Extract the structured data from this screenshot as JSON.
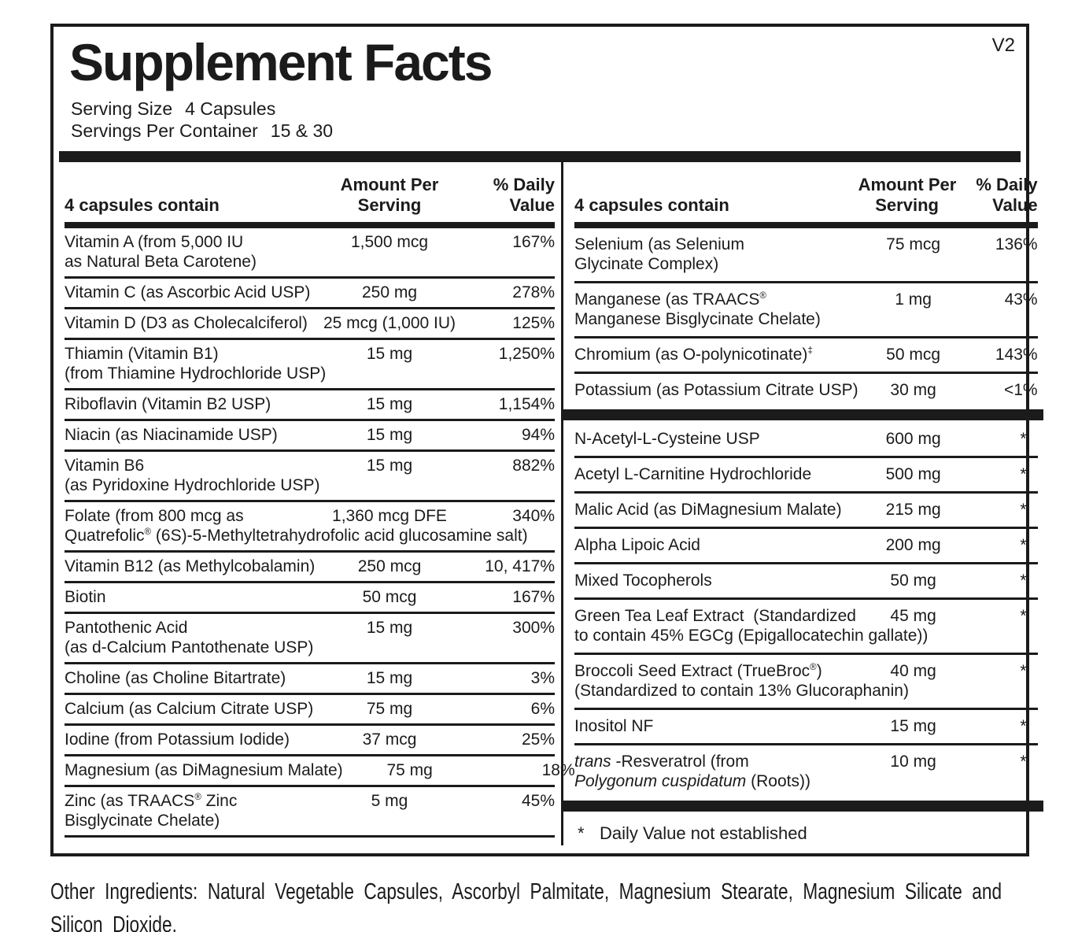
{
  "version_tag": "V2",
  "title": "Supplement Facts",
  "serving_size": {
    "label": "Serving Size",
    "value": "4 Capsules"
  },
  "servings_per_container": {
    "label": "Servings Per Container",
    "value": "15 & 30"
  },
  "columns": {
    "left": {
      "header": {
        "contain": "4 capsules contain",
        "amount": "Amount Per\nServing",
        "dv": "% Daily\nValue"
      },
      "rows": [
        {
          "name": "Vitamin A (from 5,000 IU",
          "name2": "as Natural Beta Carotene)",
          "amount": "1,500 mcg",
          "dv": "167%"
        },
        {
          "name": "Vitamin C (as Ascorbic Acid USP)",
          "amount": "250 mg",
          "dv": "278%"
        },
        {
          "name": "Vitamin D (D3 as Cholecalciferol)",
          "amount": "25 mcg (1,000 IU)",
          "dv": "125%"
        },
        {
          "name": "Thiamin (Vitamin B1)",
          "name2": "(from Thiamine Hydrochloride USP)",
          "amount": "15 mg",
          "dv": "1,250%"
        },
        {
          "name": "Riboflavin (Vitamin B2 USP)",
          "amount": "15 mg",
          "dv": "1,154%"
        },
        {
          "name": "Niacin (as Niacinamide USP)",
          "amount": "15 mg",
          "dv": "94%"
        },
        {
          "name": "Vitamin B6",
          "name2": "(as Pyridoxine Hydrochloride USP)",
          "amount": "15 mg",
          "dv": "882%"
        },
        {
          "name": "Folate (from 800 mcg as",
          "name2": "Quatrefolic® (6S)-5-Methyltetrahydrofolic acid glucosamine salt)",
          "amount": "1,360 mcg DFE",
          "dv": "340%"
        },
        {
          "name": "Vitamin B12 (as Methylcobalamin)",
          "amount": "250 mcg",
          "dv": "10, 417%"
        },
        {
          "name": "Biotin",
          "amount": "50 mcg",
          "dv": "167%"
        },
        {
          "name": "Pantothenic Acid",
          "name2": "(as d-Calcium Pantothenate USP)",
          "amount": "15 mg",
          "dv": "300%"
        },
        {
          "name": "Choline (as Choline Bitartrate)",
          "amount": "15 mg",
          "dv": "3%"
        },
        {
          "name": "Calcium (as Calcium Citrate USP)",
          "amount": "75 mg",
          "dv": "6%"
        },
        {
          "name": "Iodine (from Potassium Iodide)",
          "amount": "37 mcg",
          "dv": "25%"
        },
        {
          "name": "Magnesium (as DiMagnesium Malate)",
          "amount": "75 mg",
          "dv": "18%"
        },
        {
          "name": "Zinc (as TRAACS® Zinc",
          "name2": "Bisglycinate Chelate)",
          "amount": "5 mg",
          "dv": "45%"
        }
      ]
    },
    "right": {
      "header": {
        "contain": "4 capsules contain",
        "amount": "Amount Per\nServing",
        "dv": "% Daily\nValue"
      },
      "rows_top": [
        {
          "name": "Selenium (as Selenium",
          "name2": "Glycinate Complex)",
          "amount": "75 mcg",
          "dv": "136%"
        },
        {
          "name": "Manganese (as TRAACS®",
          "name2": "Manganese Bisglycinate Chelate)",
          "amount": "1 mg",
          "dv": "43%"
        },
        {
          "name": "Chromium (as O-polynicotinate)‡",
          "amount": "50 mcg",
          "dv": "143%"
        },
        {
          "name": "Potassium (as Potassium Citrate USP)",
          "amount": "30 mg",
          "dv": "<1%"
        }
      ],
      "rows_bottom": [
        {
          "name": "N-Acetyl-L-Cysteine USP",
          "amount": "600 mg",
          "dv": "*"
        },
        {
          "name": "Acetyl L-Carnitine Hydrochloride",
          "amount": "500 mg",
          "dv": "*"
        },
        {
          "name": "Malic Acid (as DiMagnesium Malate)",
          "amount": "215 mg",
          "dv": "*"
        },
        {
          "name": "Alpha Lipoic Acid",
          "amount": "200 mg",
          "dv": "*"
        },
        {
          "name": "Mixed Tocopherols",
          "amount": "50 mg",
          "dv": "*"
        },
        {
          "name": "Green Tea Leaf Extract  (Standardized",
          "name2": "to contain 45% EGCg (Epigallocatechin gallate))",
          "amount": "45 mg",
          "dv": "*"
        },
        {
          "name": "Broccoli Seed Extract (TrueBroc®)",
          "name2": "(Standardized to contain 13% Glucoraphanin)",
          "amount": "40 mg",
          "dv": "*"
        },
        {
          "name": "Inositol NF",
          "amount": "15 mg",
          "dv": "*"
        },
        {
          "name": "trans -Resveratrol (from",
          "name2": "Polygonum cuspidatum (Roots))",
          "amount": "10 mg",
          "dv": "*",
          "italics": [
            "trans",
            "Polygonum cuspidatum"
          ]
        }
      ],
      "footnote": {
        "star": "*",
        "text": "Daily Value not established"
      }
    }
  },
  "other_ingredients": "Other Ingredients: Natural Vegetable Capsules, Ascorbyl Palmitate, Magnesium Stearate, Magnesium Silicate and\nSilicon Dioxide.",
  "colors": {
    "ink": "#1b1b1b",
    "background": "#ffffff"
  }
}
